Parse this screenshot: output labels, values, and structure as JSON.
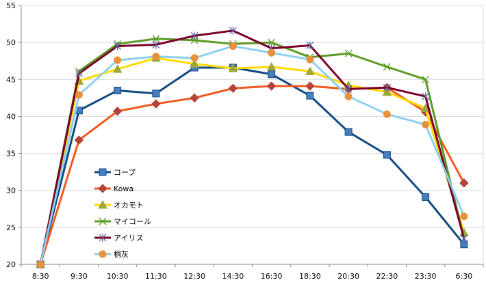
{
  "chart_data": {
    "type": "line",
    "title": "",
    "xlabel": "",
    "ylabel": "",
    "categories": [
      "8:30",
      "9:30",
      "10:30",
      "11:30",
      "12:30",
      "14:30",
      "16:30",
      "18:30",
      "20:30",
      "22:30",
      "23:30",
      "6:30"
    ],
    "ylim": [
      20,
      55
    ],
    "yticks": [
      20,
      25,
      30,
      35,
      40,
      45,
      50,
      55
    ],
    "grid": "horizontal",
    "legend": "inside-bottom-left",
    "series": [
      {
        "name": "コープ",
        "color": "#0e4a84",
        "marker": "square",
        "values": [
          20.0,
          40.8,
          43.5,
          43.1,
          46.6,
          46.6,
          45.7,
          42.8,
          37.9,
          34.8,
          29.1,
          22.7
        ]
      },
      {
        "name": "Kowa",
        "color": "#f05a1e",
        "marker": "diamond",
        "markerColor": "#b5433a",
        "values": [
          20.0,
          36.8,
          40.7,
          41.7,
          42.5,
          43.8,
          44.1,
          44.1,
          43.7,
          43.9,
          40.6,
          31.0
        ]
      },
      {
        "name": "オカモト",
        "color": "#ffd900",
        "marker": "triangle",
        "markerColor": "#9aa83a",
        "values": [
          20.0,
          44.8,
          46.4,
          47.9,
          47.1,
          46.5,
          46.7,
          46.1,
          44.2,
          43.3,
          41.1,
          24.3
        ]
      },
      {
        "name": "マイコール",
        "color": "#5c9a23",
        "marker": "x",
        "values": [
          20.0,
          46.1,
          49.8,
          50.5,
          50.3,
          49.8,
          50.0,
          48.0,
          48.5,
          46.7,
          45.0,
          23.5
        ]
      },
      {
        "name": "アイリス",
        "color": "#7a0026",
        "marker": "star",
        "markerColor": "#5a5aa0",
        "values": [
          20.0,
          45.8,
          49.5,
          49.7,
          50.9,
          51.6,
          49.2,
          49.6,
          43.7,
          43.9,
          42.7,
          23.5
        ]
      },
      {
        "name": "桐灰",
        "color": "#8ccff2",
        "marker": "circle",
        "markerColor": "#e8913a",
        "values": [
          20.0,
          42.9,
          47.6,
          48.1,
          47.9,
          49.5,
          48.6,
          47.7,
          42.7,
          40.3,
          38.9,
          26.5
        ]
      }
    ]
  }
}
